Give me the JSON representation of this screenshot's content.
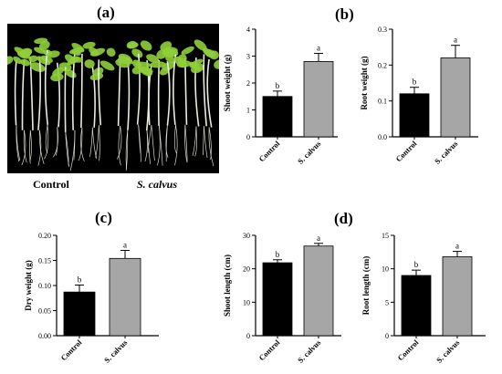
{
  "panel_labels": {
    "a": "(a)",
    "b": "(b)",
    "c": "(c)",
    "d": "(d)"
  },
  "photo": {
    "caption_left": "Control",
    "caption_right": "S. calvus"
  },
  "colors": {
    "control_bar": "#000000",
    "treatment_bar": "#a6a6a6",
    "photo_background": "#000000",
    "leaf": "#8fcf3a",
    "stem": "#e8ede0"
  },
  "chart_data": [
    {
      "type": "bar",
      "id": "shoot-weight",
      "categories": [
        "Control",
        "S. calvus"
      ],
      "values": [
        1.5,
        2.8
      ],
      "errors": [
        0.2,
        0.3
      ],
      "significance": [
        "b",
        "a"
      ],
      "ylabel": "Shoot weight (g)",
      "ylim": [
        0,
        4
      ],
      "yticks": [
        0,
        1,
        2,
        3,
        4
      ],
      "yticklabels": [
        "0",
        "1",
        "2",
        "3",
        "4"
      ]
    },
    {
      "type": "bar",
      "id": "root-weight",
      "categories": [
        "Control",
        "S. calvus"
      ],
      "values": [
        0.12,
        0.22
      ],
      "errors": [
        0.018,
        0.035
      ],
      "significance": [
        "b",
        "a"
      ],
      "ylabel": "Root weight (g)",
      "ylim": [
        0,
        0.3
      ],
      "yticks": [
        0,
        0.1,
        0.2,
        0.3
      ],
      "yticklabels": [
        "0.0",
        "0.1",
        "0.2",
        "0.3"
      ]
    },
    {
      "type": "bar",
      "id": "dry-weight",
      "categories": [
        "Control",
        "S. calvus"
      ],
      "values": [
        0.087,
        0.154
      ],
      "errors": [
        0.014,
        0.016
      ],
      "significance": [
        "b",
        "a"
      ],
      "ylabel": "Dry weight (g)",
      "ylim": [
        0,
        0.2
      ],
      "yticks": [
        0,
        0.05,
        0.1,
        0.15,
        0.2
      ],
      "yticklabels": [
        "0.00",
        "0.05",
        "0.10",
        "0.15",
        "0.20"
      ]
    },
    {
      "type": "bar",
      "id": "shoot-length",
      "categories": [
        "Control",
        "S. calvus"
      ],
      "values": [
        21.8,
        26.8
      ],
      "errors": [
        0.9,
        0.8
      ],
      "significance": [
        "b",
        "a"
      ],
      "ylabel": "Shoot length (cm)",
      "ylim": [
        0,
        30
      ],
      "yticks": [
        0,
        10,
        20,
        30
      ],
      "yticklabels": [
        "0",
        "10",
        "20",
        "30"
      ]
    },
    {
      "type": "bar",
      "id": "root-length",
      "categories": [
        "Control",
        "S. calvus"
      ],
      "values": [
        9.0,
        11.8
      ],
      "errors": [
        0.8,
        0.8
      ],
      "significance": [
        "b",
        "a"
      ],
      "ylabel": "Root length (cm)",
      "ylim": [
        0,
        15
      ],
      "yticks": [
        0,
        5,
        10,
        15
      ],
      "yticklabels": [
        "0",
        "5",
        "10",
        "15"
      ]
    }
  ]
}
